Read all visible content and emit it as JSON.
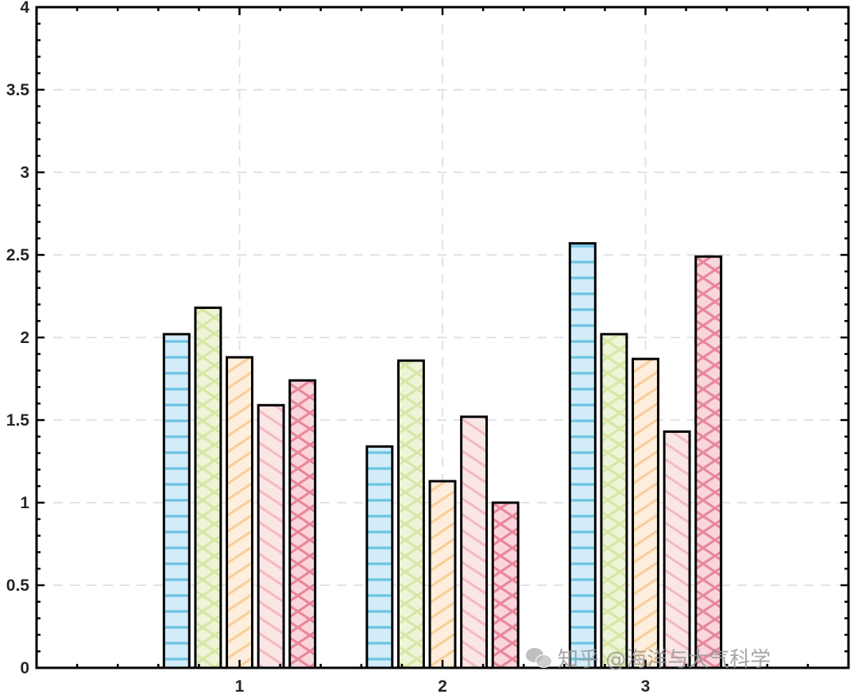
{
  "chart_data": {
    "type": "bar",
    "categories": [
      "1",
      "2",
      "3"
    ],
    "series": [
      {
        "values": [
          2.02,
          1.34,
          2.57
        ],
        "color": "#d3ecf9",
        "hatch_color": "#6cc4e2",
        "hatch": "horizontal"
      },
      {
        "values": [
          2.18,
          1.86,
          2.02
        ],
        "color": "#eef4d8",
        "hatch_color": "#d7e7a6",
        "hatch": "cross"
      },
      {
        "values": [
          1.88,
          1.13,
          1.87
        ],
        "color": "#fdeede",
        "hatch_color": "#f8cf9a",
        "hatch": "diagonal-up"
      },
      {
        "values": [
          1.59,
          1.52,
          1.43
        ],
        "color": "#fbe6e6",
        "hatch_color": "#f2bcc0",
        "hatch": "diagonal-down"
      },
      {
        "values": [
          1.74,
          1.0,
          2.49
        ],
        "color": "#f8d6dc",
        "hatch_color": "#e9879c",
        "hatch": "cross"
      }
    ],
    "yticks": [
      "0",
      "0.5",
      "1",
      "1.5",
      "2",
      "2.5",
      "3",
      "3.5",
      "4"
    ],
    "ylim": [
      0,
      4
    ],
    "xlim": [
      0,
      4
    ],
    "grid": true,
    "grid_style": "dashed",
    "legend": "none"
  },
  "watermark": {
    "text": "知乎 @海洋与大气科学",
    "icon": "wechat-icon"
  }
}
